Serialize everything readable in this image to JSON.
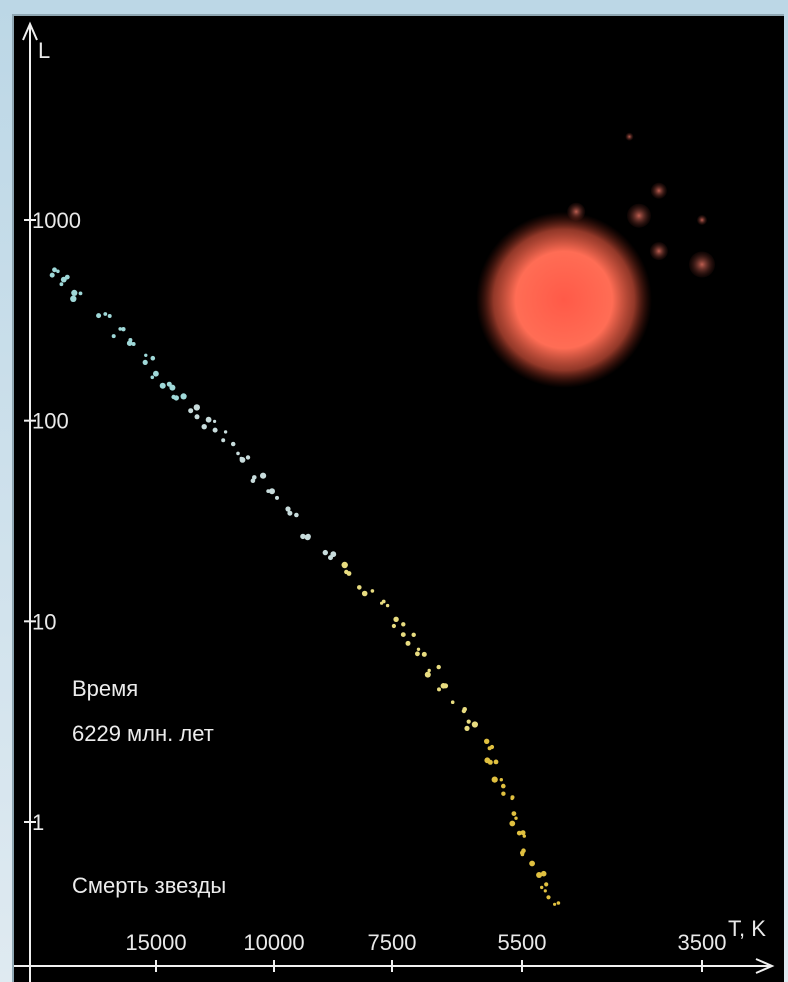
{
  "chart_data": {
    "type": "scatter",
    "title": "",
    "xlabel": "T, K",
    "ylabel": "L",
    "x_scale": "log",
    "y_scale": "log",
    "x_direction": "reversed",
    "x_ticks": [
      15000,
      10000,
      7500,
      5500,
      3500
    ],
    "x_tick_labels": [
      "15000",
      "10000",
      "7500",
      "5500",
      "3500"
    ],
    "y_ticks": [
      1,
      10,
      100,
      1000
    ],
    "y_tick_labels": [
      "1",
      "10",
      "100",
      "1000"
    ],
    "ylim": [
      0.3,
      5000
    ],
    "xlim": [
      22000,
      3200
    ],
    "grid": false,
    "series": [
      {
        "kind": "main-sequence",
        "points": [
          [
            21000,
            560
          ],
          [
            20500,
            490
          ],
          [
            19500,
            430
          ],
          [
            18000,
            330
          ],
          [
            17000,
            280
          ],
          [
            16500,
            240
          ],
          [
            15500,
            200
          ],
          [
            15000,
            170
          ],
          [
            14500,
            155
          ],
          [
            13800,
            128
          ],
          [
            13000,
            110
          ],
          [
            12500,
            96
          ],
          [
            12000,
            84
          ],
          [
            11500,
            72
          ],
          [
            11000,
            62
          ],
          [
            10500,
            52
          ],
          [
            10000,
            42
          ],
          [
            9600,
            34
          ],
          [
            9200,
            28
          ],
          [
            8800,
            22
          ],
          [
            8400,
            18
          ],
          [
            8000,
            14.5
          ],
          [
            7700,
            12
          ],
          [
            7400,
            9.8
          ],
          [
            7200,
            8.2
          ],
          [
            7000,
            6.8
          ],
          [
            6800,
            5.6
          ],
          [
            6600,
            4.6
          ],
          [
            6400,
            3.8
          ],
          [
            6200,
            3.1
          ],
          [
            6000,
            2.4
          ],
          [
            5900,
            2.0
          ],
          [
            5800,
            1.6
          ],
          [
            5700,
            1.3
          ],
          [
            5600,
            1.05
          ],
          [
            5500,
            0.85
          ],
          [
            5400,
            0.7
          ],
          [
            5300,
            0.58
          ],
          [
            5200,
            0.48
          ],
          [
            5100,
            0.4
          ]
        ],
        "colors": [
          "#9fd8d8",
          "#c8dcdc",
          "#e8dc80",
          "#e0c040"
        ]
      },
      {
        "kind": "red-giants",
        "points": [
          [
            4200,
            2600
          ],
          [
            3900,
            1400
          ],
          [
            4800,
            1100
          ],
          [
            4100,
            1050
          ],
          [
            3500,
            1000
          ],
          [
            3900,
            700
          ],
          [
            3500,
            600
          ]
        ],
        "color": "#e07060"
      },
      {
        "kind": "highlighted-star",
        "points": [
          [
            4950,
            400
          ]
        ],
        "color": "#ff6a55"
      }
    ]
  },
  "info": {
    "time_label": "Время",
    "time_value": "6229 млн. лет",
    "event": "Смерть звезды"
  }
}
